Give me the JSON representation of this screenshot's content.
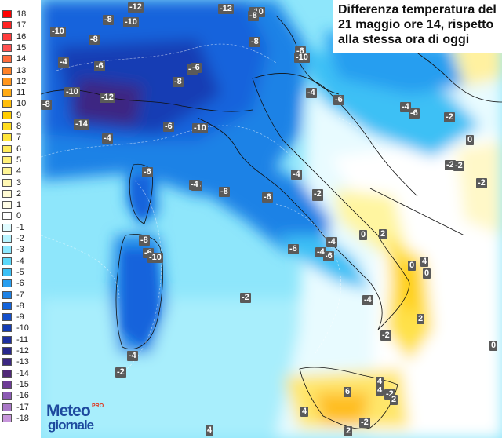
{
  "title": {
    "line1": "Differenza temperatura del",
    "line2": "21 maggio ore 14, rispetto",
    "line3": "alla stessa ora di oggi"
  },
  "legend": [
    {
      "label": "18",
      "color": "#ff0000"
    },
    {
      "label": "17",
      "color": "#ff2222"
    },
    {
      "label": "16",
      "color": "#ff3c3c"
    },
    {
      "label": "15",
      "color": "#ff5050"
    },
    {
      "label": "14",
      "color": "#ff6b3c"
    },
    {
      "label": "13",
      "color": "#ff8228"
    },
    {
      "label": "12",
      "color": "#ff961e"
    },
    {
      "label": "11",
      "color": "#ffaa14"
    },
    {
      "label": "10",
      "color": "#ffbe0a"
    },
    {
      "label": "9",
      "color": "#ffcd00"
    },
    {
      "label": "8",
      "color": "#ffdc1e"
    },
    {
      "label": "7",
      "color": "#ffe63c"
    },
    {
      "label": "6",
      "color": "#ffeb5a"
    },
    {
      "label": "5",
      "color": "#fff078"
    },
    {
      "label": "4",
      "color": "#fff596"
    },
    {
      "label": "3",
      "color": "#fff8b4"
    },
    {
      "label": "2",
      "color": "#fffad2"
    },
    {
      "label": "1",
      "color": "#fffde6"
    },
    {
      "label": "0",
      "color": "#ffffff"
    },
    {
      "label": "-1",
      "color": "#e0fbff"
    },
    {
      "label": "-2",
      "color": "#b8f4ff"
    },
    {
      "label": "-3",
      "color": "#8ce8ff"
    },
    {
      "label": "-4",
      "color": "#5cd8fa"
    },
    {
      "label": "-5",
      "color": "#3cc0f5"
    },
    {
      "label": "-6",
      "color": "#289ef0"
    },
    {
      "label": "-7",
      "color": "#1e82e6"
    },
    {
      "label": "-8",
      "color": "#1464dc"
    },
    {
      "label": "-9",
      "color": "#1450cc"
    },
    {
      "label": "-10",
      "color": "#143cb4"
    },
    {
      "label": "-11",
      "color": "#1e30a0"
    },
    {
      "label": "-12",
      "color": "#28288c"
    },
    {
      "label": "-13",
      "color": "#3c2882"
    },
    {
      "label": "-14",
      "color": "#502878"
    },
    {
      "label": "-15",
      "color": "#6e3c96"
    },
    {
      "label": "-16",
      "color": "#8c5ab4"
    },
    {
      "label": "-17",
      "color": "#aa78c8"
    },
    {
      "label": "-18",
      "color": "#c896dc"
    }
  ],
  "values": [
    "-12",
    "-12",
    "-10",
    "-8",
    "-10",
    "-8",
    "-10",
    "-8",
    "-8",
    "-6",
    "-4",
    "-10",
    "-4",
    "-6",
    "-6",
    "-8",
    "-4",
    "-10",
    "-8",
    "-12",
    "-14",
    "-4",
    "-6",
    "-10",
    "-6",
    "-4",
    "-2",
    "-6",
    "-6",
    "-4",
    "-2",
    "-4",
    "-8",
    "-6",
    "-4",
    "-2",
    "-2",
    "-2",
    "-2",
    "0",
    "-8",
    "-6",
    "-10",
    "-4",
    "-6",
    "-2",
    "0",
    "2",
    "-4",
    "-6",
    "4",
    "0",
    "-2",
    "-4",
    "-2",
    "2",
    "-4",
    "0",
    "4",
    "-2",
    "6",
    "4",
    "2",
    "-2",
    "4",
    "2",
    "4",
    "0"
  ],
  "logo": {
    "line1": "Meteo",
    "line2": "giornale",
    "badge": "PRO"
  }
}
